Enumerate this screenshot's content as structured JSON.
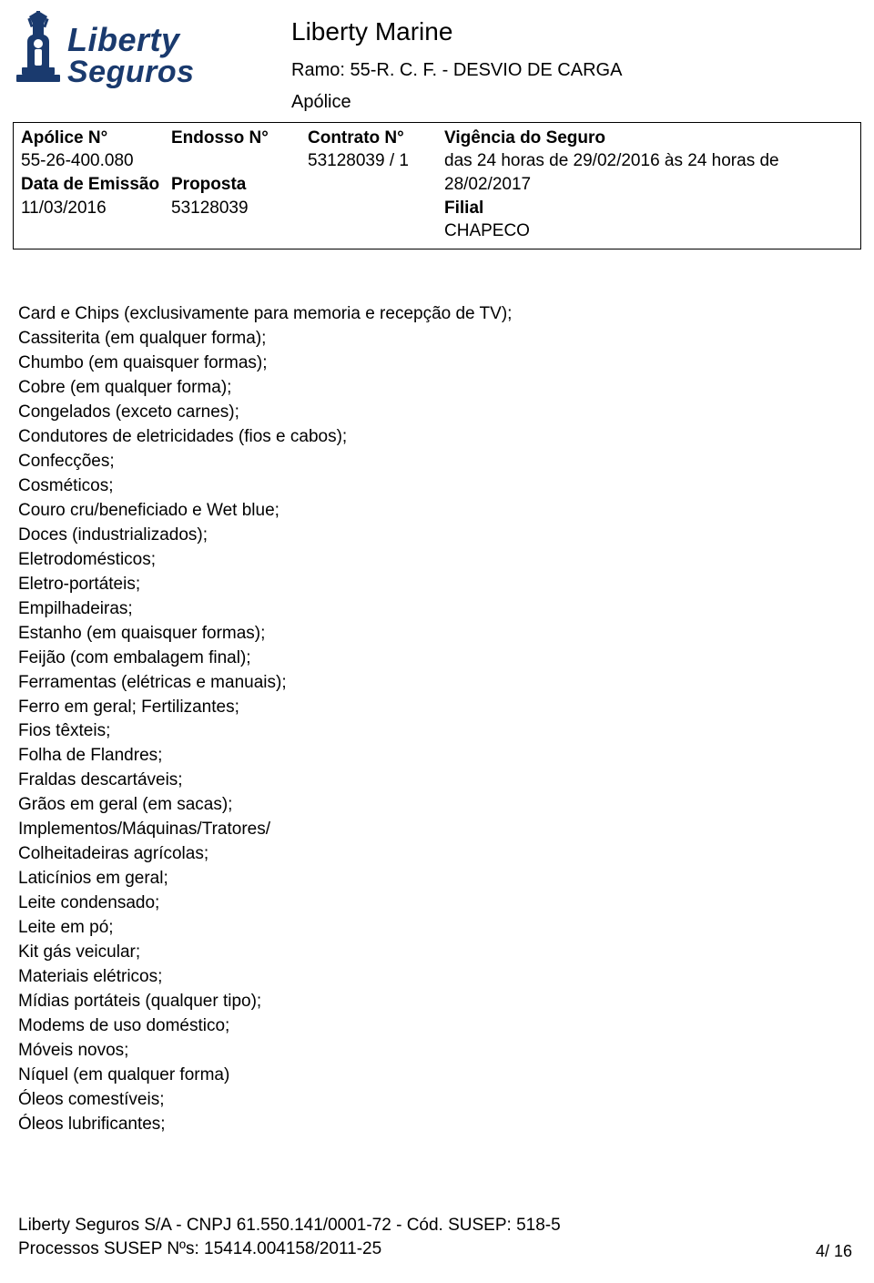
{
  "colors": {
    "brand": "#1a3a6e",
    "text": "#000000",
    "background": "#ffffff",
    "border": "#000000"
  },
  "logo": {
    "line1": "Liberty",
    "line2": "Seguros"
  },
  "header": {
    "title": "Liberty Marine",
    "ramo": "Ramo: 55-R. C. F. - DESVIO DE CARGA",
    "doc_type": "Apólice"
  },
  "meta": {
    "apolice_label": "Apólice N°",
    "apolice_value": "55-26-400.080",
    "endosso_label": "Endosso N°",
    "contrato_label": "Contrato N°",
    "contrato_value": "53128039 / 1",
    "vigencia_label": "Vigência do Seguro",
    "vigencia_value": "das 24 horas de 29/02/2016 às 24 horas de 28/02/2017",
    "emissao_label": "Data de Emissão",
    "emissao_value": "11/03/2016",
    "proposta_label": "Proposta",
    "proposta_value": "53128039",
    "filial_label": "Filial",
    "filial_value": "CHAPECO"
  },
  "items": [
    "Card e Chips (exclusivamente para memoria e recepção de TV);",
    "Cassiterita (em qualquer forma);",
    "Chumbo (em quaisquer formas);",
    "Cobre (em qualquer forma);",
    "Congelados (exceto carnes);",
    "Condutores de eletricidades (fios e cabos);",
    "Confecções;",
    "Cosméticos;",
    "Couro cru/beneficiado e Wet blue;",
    "Doces (industrializados);",
    "Eletrodomésticos;",
    "Eletro-portáteis;",
    "Empilhadeiras;",
    "Estanho (em quaisquer formas);",
    "Feijão (com embalagem final);",
    "Ferramentas (elétricas e manuais);",
    "Ferro em geral; Fertilizantes;",
    "Fios têxteis;",
    "Folha de Flandres;",
    "Fraldas descartáveis;",
    "Grãos em geral (em sacas);",
    "Implementos/Máquinas/Tratores/",
    "Colheitadeiras agrícolas;",
    "Laticínios em geral;",
    "Leite condensado;",
    "Leite em pó;",
    "Kit gás veicular;",
    "Materiais elétricos;",
    "Mídias portáteis (qualquer tipo);",
    "Modems de uso doméstico;",
    "Móveis novos;",
    "Níquel (em qualquer forma)",
    "Óleos comestíveis;",
    "Óleos lubrificantes;"
  ],
  "footer": {
    "line1": "Liberty Seguros S/A - CNPJ 61.550.141/0001-72 - Cód. SUSEP: 518-5",
    "line2": "Processos SUSEP Nºs: 15414.004158/2011-25",
    "page": "4/ 16"
  }
}
